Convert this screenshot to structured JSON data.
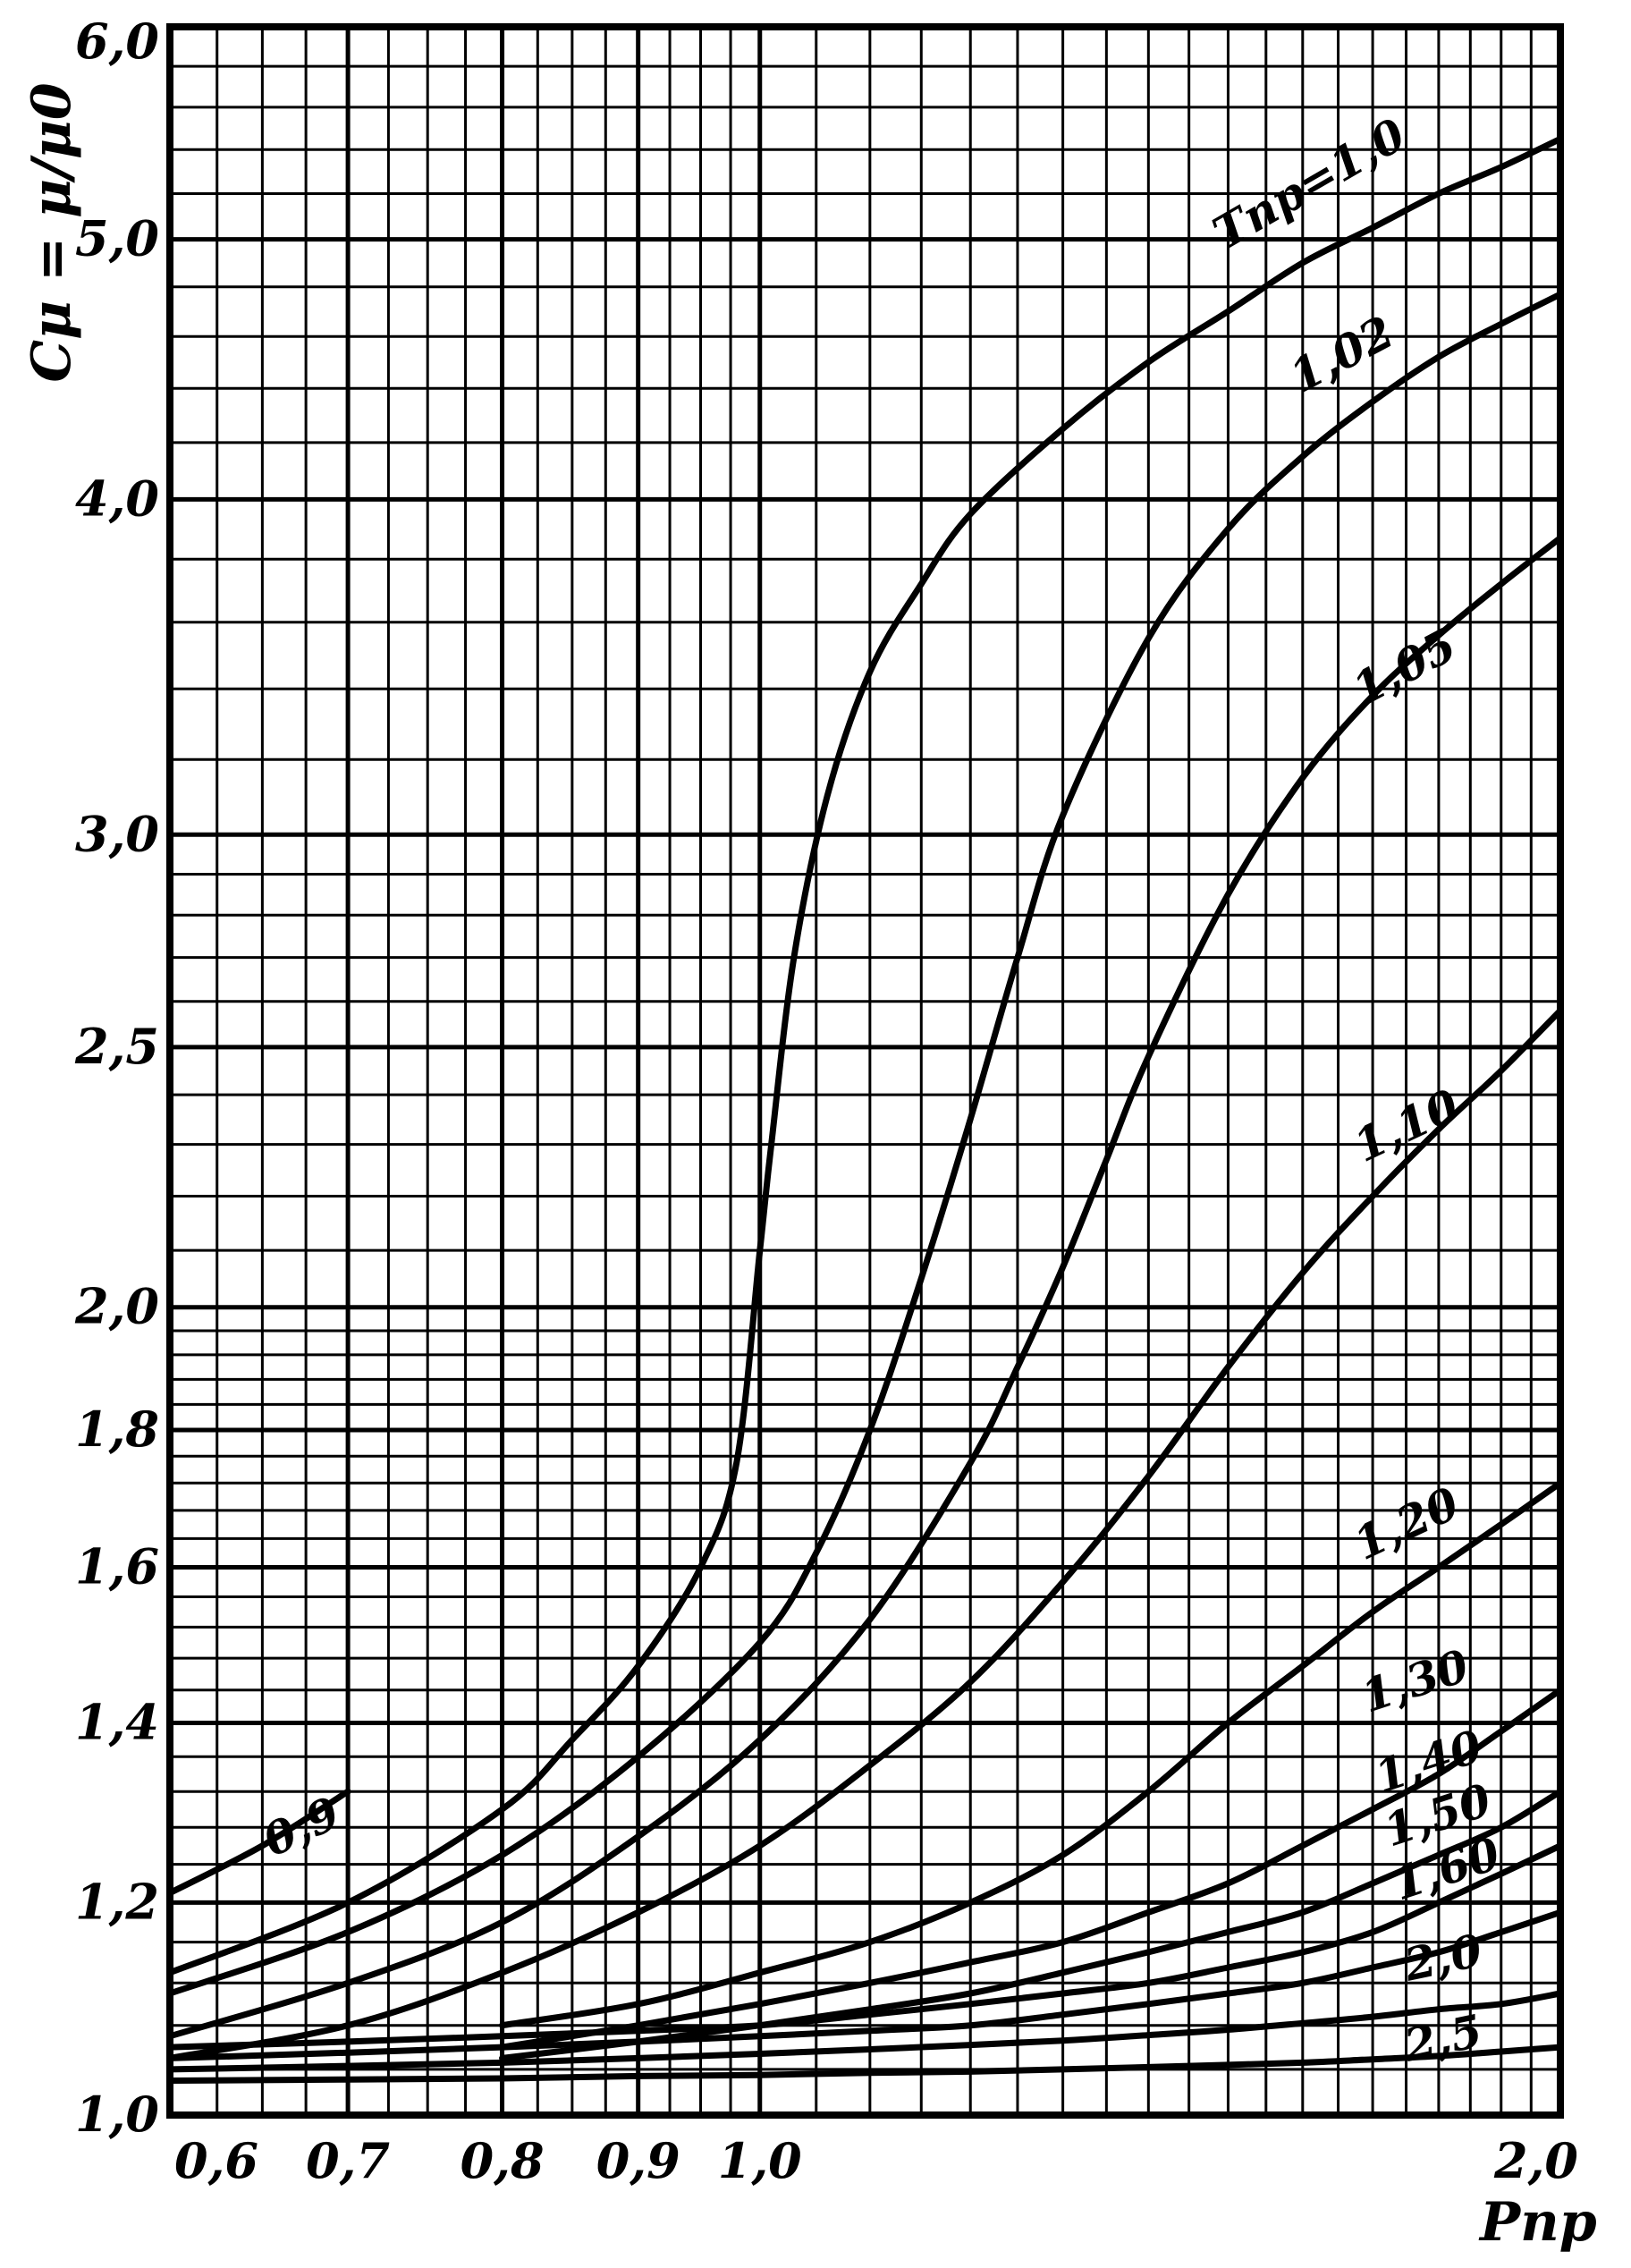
{
  "chart_data": {
    "type": "line",
    "title": "",
    "xlabel": "Pпр",
    "ylabel": "Cμ = μ/μ0",
    "x_scale": "log",
    "y_scale": "log",
    "xlim": [
      0.6,
      2.0
    ],
    "ylim": [
      1.0,
      6.0
    ],
    "x_ticks": [
      {
        "value": 0.6,
        "label": "0,6"
      },
      {
        "value": 0.7,
        "label": "0,7"
      },
      {
        "value": 0.8,
        "label": "0,8"
      },
      {
        "value": 0.9,
        "label": "0,9"
      },
      {
        "value": 1.0,
        "label": "1,0"
      },
      {
        "value": 2.0,
        "label": "2,0"
      }
    ],
    "y_ticks": [
      {
        "value": 1.0,
        "label": "1,0"
      },
      {
        "value": 1.2,
        "label": "1,2"
      },
      {
        "value": 1.4,
        "label": "1,4"
      },
      {
        "value": 1.6,
        "label": "1,6"
      },
      {
        "value": 1.8,
        "label": "1,8"
      },
      {
        "value": 2.0,
        "label": "2,0"
      },
      {
        "value": 2.5,
        "label": "2,5"
      },
      {
        "value": 3.0,
        "label": "3,0"
      },
      {
        "value": 4.0,
        "label": "4,0"
      },
      {
        "value": 5.0,
        "label": "5,0"
      },
      {
        "value": 6.0,
        "label": "6,0"
      }
    ],
    "grid": true,
    "series": [
      {
        "name": "0,9",
        "x": [
          0.6,
          0.65,
          0.7
        ],
        "y": [
          1.21,
          1.26,
          1.32
        ]
      },
      {
        "name": "Tпр=1,0",
        "x": [
          0.6,
          0.7,
          0.8,
          0.85,
          0.9,
          0.95,
          0.98,
          1.0,
          1.01,
          1.03,
          1.06,
          1.1,
          1.15,
          1.2,
          1.3,
          1.4,
          1.5,
          1.6,
          1.7,
          1.8,
          1.9,
          2.0
        ],
        "y": [
          1.13,
          1.2,
          1.3,
          1.38,
          1.47,
          1.6,
          1.75,
          2.1,
          2.3,
          2.7,
          3.1,
          3.45,
          3.72,
          3.95,
          4.25,
          4.5,
          4.7,
          4.9,
          5.05,
          5.2,
          5.32,
          5.45
        ]
      },
      {
        "name": "1,02",
        "x": [
          0.6,
          0.7,
          0.8,
          0.9,
          1.0,
          1.05,
          1.1,
          1.15,
          1.2,
          1.25,
          1.3,
          1.4,
          1.5,
          1.6,
          1.7,
          1.8,
          1.9,
          2.0
        ],
        "y": [
          1.11,
          1.17,
          1.25,
          1.36,
          1.5,
          1.62,
          1.8,
          2.05,
          2.35,
          2.7,
          3.05,
          3.55,
          3.9,
          4.15,
          4.35,
          4.52,
          4.65,
          4.77
        ]
      },
      {
        "name": "1,05",
        "x": [
          0.6,
          0.7,
          0.8,
          0.9,
          1.0,
          1.1,
          1.2,
          1.25,
          1.3,
          1.35,
          1.4,
          1.5,
          1.6,
          1.7,
          1.8,
          1.9,
          2.0
        ],
        "y": [
          1.07,
          1.12,
          1.18,
          1.27,
          1.38,
          1.53,
          1.75,
          1.9,
          2.07,
          2.27,
          2.48,
          2.85,
          3.15,
          3.38,
          3.56,
          3.72,
          3.87
        ]
      },
      {
        "name": "1,10",
        "x": [
          0.6,
          0.7,
          0.8,
          0.9,
          1.0,
          1.1,
          1.2,
          1.3,
          1.4,
          1.5,
          1.6,
          1.7,
          1.8,
          1.9,
          2.0
        ],
        "y": [
          1.05,
          1.08,
          1.13,
          1.19,
          1.26,
          1.35,
          1.45,
          1.58,
          1.73,
          1.9,
          2.06,
          2.2,
          2.33,
          2.45,
          2.58
        ]
      },
      {
        "name": "1,20",
        "x": [
          0.8,
          0.9,
          1.0,
          1.1,
          1.2,
          1.3,
          1.4,
          1.5,
          1.6,
          1.7,
          1.8,
          1.9,
          2.0
        ],
        "y": [
          1.08,
          1.1,
          1.13,
          1.16,
          1.2,
          1.25,
          1.32,
          1.4,
          1.47,
          1.54,
          1.6,
          1.66,
          1.72
        ]
      },
      {
        "name": "1,30",
        "x": [
          0.8,
          0.9,
          1.0,
          1.1,
          1.2,
          1.3,
          1.4,
          1.5,
          1.6,
          1.7,
          1.8,
          1.9,
          2.0
        ],
        "y": [
          1.06,
          1.08,
          1.1,
          1.12,
          1.14,
          1.16,
          1.19,
          1.22,
          1.26,
          1.3,
          1.34,
          1.39,
          1.44
        ]
      },
      {
        "name": "1,40",
        "x": [
          0.8,
          0.9,
          1.0,
          1.1,
          1.2,
          1.3,
          1.4,
          1.5,
          1.6,
          1.7,
          1.8,
          1.9,
          2.0
        ],
        "y": [
          1.05,
          1.065,
          1.08,
          1.095,
          1.11,
          1.13,
          1.15,
          1.17,
          1.19,
          1.22,
          1.25,
          1.28,
          1.32
        ]
      },
      {
        "name": "1,50",
        "x": [
          0.6,
          0.7,
          0.8,
          0.9,
          1.0,
          1.1,
          1.2,
          1.3,
          1.4,
          1.5,
          1.6,
          1.7,
          1.8,
          1.9,
          2.0
        ],
        "y": [
          1.06,
          1.065,
          1.07,
          1.075,
          1.08,
          1.09,
          1.1,
          1.11,
          1.12,
          1.135,
          1.15,
          1.17,
          1.2,
          1.23,
          1.26
        ]
      },
      {
        "name": "1,60",
        "x": [
          0.6,
          0.7,
          0.8,
          0.9,
          1.0,
          1.1,
          1.2,
          1.3,
          1.4,
          1.5,
          1.6,
          1.7,
          1.8,
          1.9,
          2.0
        ],
        "y": [
          1.05,
          1.055,
          1.06,
          1.065,
          1.07,
          1.075,
          1.08,
          1.09,
          1.1,
          1.11,
          1.12,
          1.135,
          1.15,
          1.17,
          1.19
        ]
      },
      {
        "name": "2,0",
        "x": [
          0.6,
          0.7,
          0.8,
          0.9,
          1.0,
          1.1,
          1.2,
          1.3,
          1.4,
          1.5,
          1.6,
          1.7,
          1.8,
          1.9,
          2.0
        ],
        "y": [
          1.04,
          1.043,
          1.046,
          1.05,
          1.054,
          1.058,
          1.062,
          1.066,
          1.071,
          1.076,
          1.082,
          1.088,
          1.095,
          1.1,
          1.11
        ]
      },
      {
        "name": "2,5",
        "x": [
          0.6,
          0.7,
          0.8,
          0.9,
          1.0,
          1.1,
          1.2,
          1.3,
          1.4,
          1.5,
          1.6,
          1.7,
          1.8,
          1.9,
          2.0
        ],
        "y": [
          1.03,
          1.031,
          1.032,
          1.034,
          1.035,
          1.037,
          1.038,
          1.04,
          1.042,
          1.044,
          1.046,
          1.049,
          1.052,
          1.056,
          1.06
        ]
      }
    ]
  }
}
